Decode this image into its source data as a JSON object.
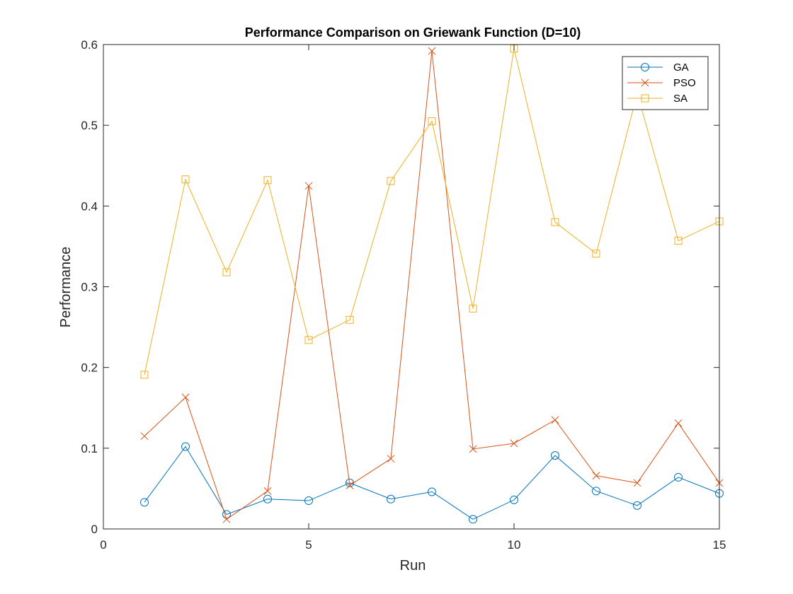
{
  "chart_data": {
    "type": "line",
    "title": "Performance Comparison on Griewank Function (D=10)",
    "xlabel": "Run",
    "ylabel": "Performance",
    "xlim": [
      0,
      15
    ],
    "ylim": [
      0,
      0.6
    ],
    "xticks": [
      0,
      5,
      10,
      15
    ],
    "xtick_labels": [
      "0",
      "5",
      "10",
      "15"
    ],
    "yticks": [
      0,
      0.1,
      0.2,
      0.3,
      0.4,
      0.5,
      0.6
    ],
    "ytick_labels": [
      "0",
      "0.1",
      "0.2",
      "0.3",
      "0.4",
      "0.5",
      "0.6"
    ],
    "grid": false,
    "legend_position": "top-right",
    "x": [
      1,
      2,
      3,
      4,
      5,
      6,
      7,
      8,
      9,
      10,
      11,
      12,
      13,
      14,
      15
    ],
    "series": [
      {
        "name": "GA",
        "color": "#0072BD",
        "marker": "circle",
        "values": [
          0.033,
          0.102,
          0.018,
          0.037,
          0.035,
          0.057,
          0.037,
          0.046,
          0.012,
          0.036,
          0.091,
          0.047,
          0.029,
          0.064,
          0.044
        ]
      },
      {
        "name": "PSO",
        "color": "#D95319",
        "marker": "x",
        "values": [
          0.115,
          0.163,
          0.012,
          0.047,
          0.425,
          0.054,
          0.087,
          0.592,
          0.099,
          0.106,
          0.135,
          0.066,
          0.057,
          0.131,
          0.057
        ]
      },
      {
        "name": "SA",
        "color": "#EDB120",
        "marker": "square",
        "values": [
          0.191,
          0.433,
          0.318,
          0.432,
          0.234,
          0.259,
          0.431,
          0.505,
          0.273,
          0.595,
          0.38,
          0.341,
          0.54,
          0.357,
          0.381
        ]
      }
    ]
  }
}
